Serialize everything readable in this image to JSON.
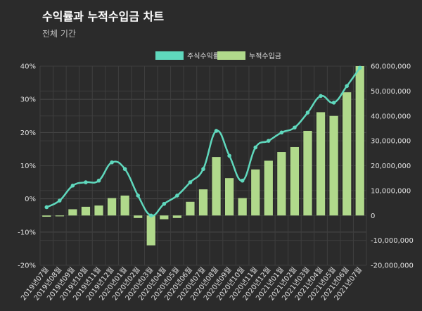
{
  "header": {
    "title": "수익률과 누적수입금 차트",
    "subtitle": "전체 기간"
  },
  "chart_data": {
    "type": "bar+line",
    "categories": [
      "2019년07월",
      "2019년08월",
      "2019년09월",
      "2019년10월",
      "2019년11월",
      "2019년12월",
      "2020년01월",
      "2020년02월",
      "2020년03월",
      "2020년04월",
      "2020년05월",
      "2020년06월",
      "2020년07월",
      "2020년08월",
      "2020년09월",
      "2020년10월",
      "2020년11월",
      "2020년12월",
      "2021년01월",
      "2021년02월",
      "2021년03월",
      "2021년04월",
      "2021년05월",
      "2021년06월",
      "2021년07월"
    ],
    "series": [
      {
        "name": "주식수익률",
        "kind": "line",
        "axis": "left",
        "color": "#5fd8bd",
        "values": [
          -2.5,
          -0.5,
          4,
          5,
          5.5,
          11,
          9,
          1,
          -5,
          -1.5,
          1,
          5,
          9,
          20.5,
          13,
          5.5,
          15.5,
          17.5,
          20,
          21.5,
          26,
          31,
          29,
          34,
          39.5
        ]
      },
      {
        "name": "누적수입금",
        "kind": "bar",
        "axis": "right",
        "color": "#b0d98b",
        "values": [
          -500000,
          -300000,
          2500000,
          3500000,
          4000000,
          7000000,
          8000000,
          -1000000,
          -12000000,
          -1500000,
          -1000000,
          5500000,
          10500000,
          23500000,
          15000000,
          7000000,
          18500000,
          22000000,
          25500000,
          27500000,
          34000000,
          41500000,
          40000000,
          49500000,
          60000000
        ]
      }
    ],
    "y_left": {
      "min": -20,
      "max": 40,
      "step": 10,
      "ticks": [
        "40%",
        "30%",
        "20%",
        "10%",
        "0%",
        "-10%",
        "-20%"
      ]
    },
    "y_right": {
      "min": -20000000,
      "max": 60000000,
      "step": 10000000,
      "ticks": [
        "60,000,000",
        "50,000,000",
        "40,000,000",
        "30,000,000",
        "20,000,000",
        "10,000,000",
        "0",
        "-10,000,000",
        "-20,000,000"
      ]
    },
    "legend_position": "top-center",
    "grid": true
  }
}
